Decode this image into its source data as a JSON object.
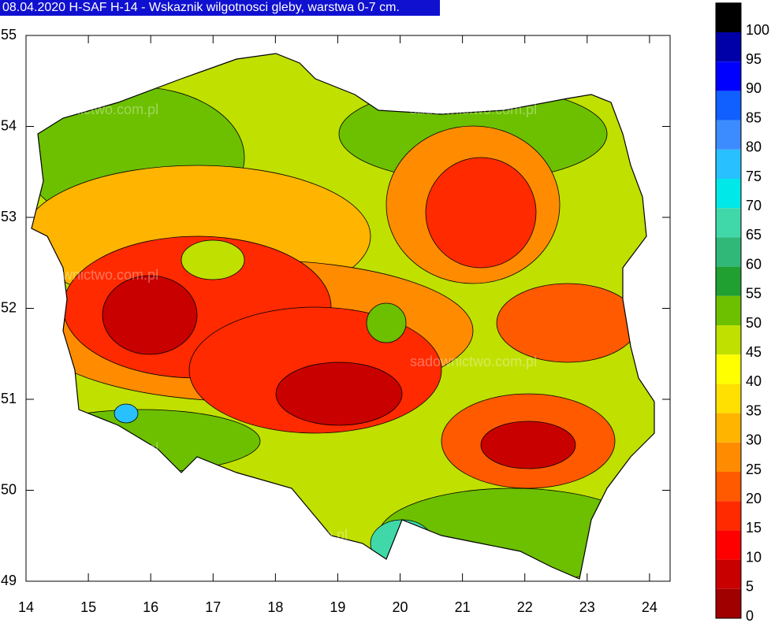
{
  "title": "08.04.2020 H-SAF H-14 - Wskaznik wilgotnosci gleby, warstwa 0-7 cm.",
  "watermark": "sadownictwo.com.pl",
  "map": {
    "xlim": [
      14,
      24.33
    ],
    "ylim": [
      49,
      55.0
    ],
    "xticks": [
      14,
      15,
      16,
      17,
      18,
      19,
      20,
      21,
      22,
      23,
      24
    ],
    "yticks": [
      49,
      50,
      51,
      52,
      53,
      54,
      55
    ]
  },
  "colorbar": {
    "levels": [
      0,
      5,
      10,
      15,
      20,
      25,
      30,
      35,
      40,
      45,
      50,
      55,
      60,
      65,
      70,
      75,
      80,
      85,
      90,
      95,
      100
    ],
    "colors": [
      "#a00000",
      "#c80000",
      "#ff0000",
      "#ff2a00",
      "#ff5a00",
      "#ff8c00",
      "#ffb400",
      "#ffe000",
      "#ffff00",
      "#c0e000",
      "#6cc000",
      "#20a030",
      "#30b878",
      "#40d8a8",
      "#00e8e8",
      "#28c0ff",
      "#3c8cff",
      "#1060ff",
      "#0000ff",
      "#0000a8",
      "#000000"
    ]
  }
}
